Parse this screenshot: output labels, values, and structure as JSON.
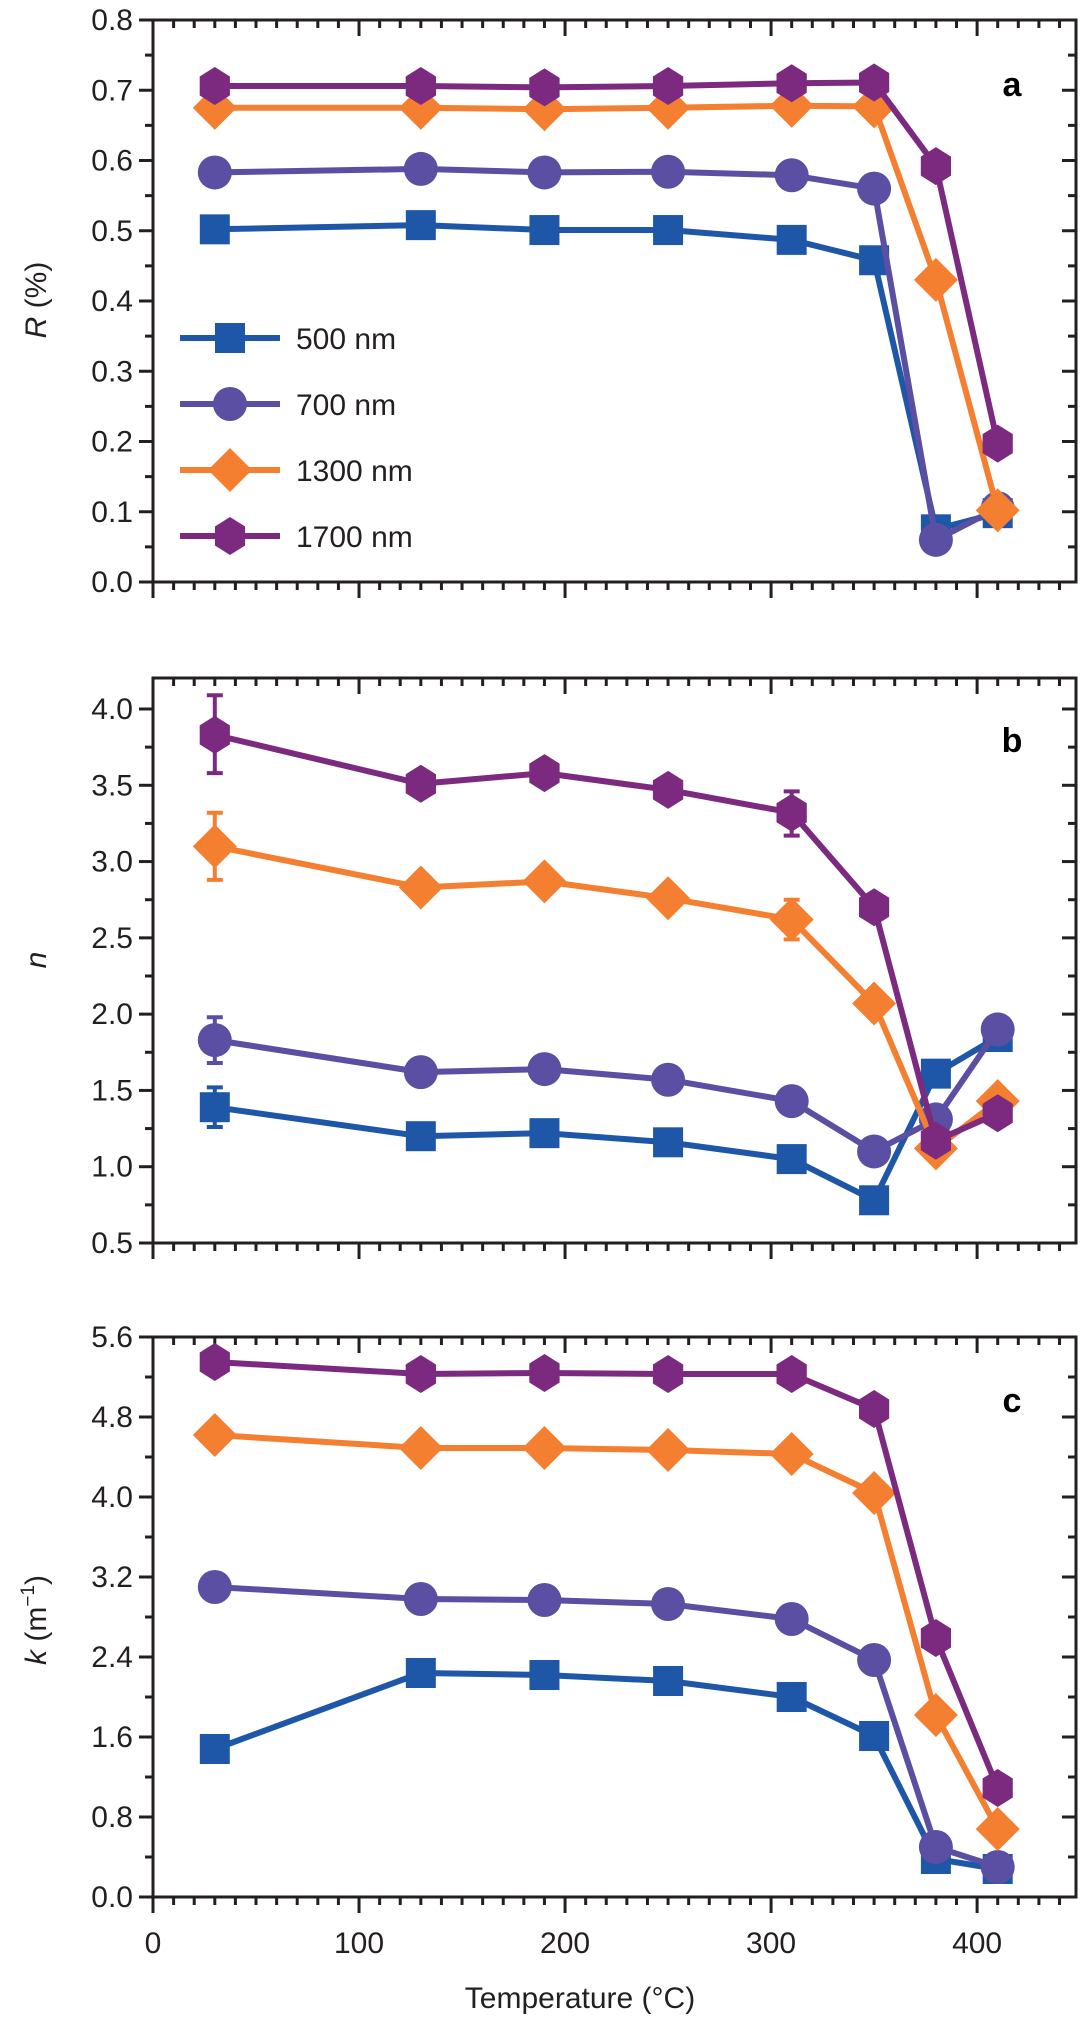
{
  "chart_data": [
    {
      "type": "line",
      "panel_label": "a",
      "xlabel": "",
      "ylabel_italic": "R",
      "ylabel_rest": " (%)",
      "xlim": [
        0,
        448
      ],
      "ylim": [
        0.0,
        0.8
      ],
      "yticks": [
        0.0,
        0.1,
        0.2,
        0.3,
        0.4,
        0.5,
        0.6,
        0.7,
        0.8
      ],
      "ytick_labels": [
        "0.0",
        "0.1",
        "0.2",
        "0.3",
        "0.4",
        "0.5",
        "0.6",
        "0.7",
        "0.8"
      ],
      "x": [
        30,
        130,
        190,
        250,
        310,
        350,
        380,
        410
      ],
      "legend": {
        "placement": "center-left",
        "entries": [
          "500 nm",
          "700 nm",
          "1300 nm",
          "1700 nm"
        ]
      },
      "series": [
        {
          "name": "500 nm",
          "marker": "square",
          "color": "#1f57a8",
          "values": [
            0.502,
            0.508,
            0.501,
            0.501,
            0.487,
            0.458,
            0.075,
            0.098
          ]
        },
        {
          "name": "700 nm",
          "marker": "circle",
          "color": "#5a4fa2",
          "values": [
            0.583,
            0.588,
            0.583,
            0.584,
            0.579,
            0.56,
            0.06,
            0.105
          ]
        },
        {
          "name": "1300 nm",
          "marker": "diamond",
          "color": "#f47f31",
          "values": [
            0.675,
            0.675,
            0.673,
            0.675,
            0.678,
            0.677,
            0.43,
            0.102
          ]
        },
        {
          "name": "1700 nm",
          "marker": "hexagon",
          "color": "#7b2a7f",
          "values": [
            0.706,
            0.706,
            0.704,
            0.706,
            0.71,
            0.711,
            0.592,
            0.197
          ]
        }
      ],
      "error_bars": []
    },
    {
      "type": "line",
      "panel_label": "b",
      "xlabel": "",
      "ylabel_italic": "n",
      "ylabel_rest": "",
      "xlim": [
        0,
        448
      ],
      "ylim": [
        0.5,
        4.2
      ],
      "yticks": [
        0.5,
        1.0,
        1.5,
        2.0,
        2.5,
        3.0,
        3.5,
        4.0
      ],
      "ytick_labels": [
        "0.5",
        "1.0",
        "1.5",
        "2.0",
        "2.5",
        "3.0",
        "3.5",
        "4.0"
      ],
      "x": [
        30,
        130,
        190,
        250,
        310,
        350,
        380,
        410
      ],
      "series": [
        {
          "name": "500 nm",
          "marker": "square",
          "color": "#1f57a8",
          "values": [
            1.39,
            1.2,
            1.22,
            1.16,
            1.05,
            0.78,
            1.61,
            1.85
          ]
        },
        {
          "name": "700 nm",
          "marker": "circle",
          "color": "#5a4fa2",
          "values": [
            1.83,
            1.62,
            1.64,
            1.57,
            1.43,
            1.1,
            1.31,
            1.9
          ]
        },
        {
          "name": "1300 nm",
          "marker": "diamond",
          "color": "#f47f31",
          "values": [
            3.1,
            2.83,
            2.87,
            2.76,
            2.62,
            2.07,
            1.12,
            1.43
          ]
        },
        {
          "name": "1700 nm",
          "marker": "hexagon",
          "color": "#7b2a7f",
          "values": [
            3.83,
            3.51,
            3.58,
            3.47,
            3.32,
            2.7,
            1.17,
            1.35
          ]
        }
      ],
      "error_bars": [
        {
          "series": "500 nm",
          "x": 30,
          "low": 1.26,
          "high": 1.52
        },
        {
          "series": "700 nm",
          "x": 30,
          "low": 1.68,
          "high": 1.98
        },
        {
          "series": "1300 nm",
          "x": 30,
          "low": 2.88,
          "high": 3.32
        },
        {
          "series": "1300 nm",
          "x": 310,
          "low": 2.49,
          "high": 2.75
        },
        {
          "series": "1700 nm",
          "x": 30,
          "low": 3.58,
          "high": 4.09
        },
        {
          "series": "1700 nm",
          "x": 310,
          "low": 3.17,
          "high": 3.46
        }
      ]
    },
    {
      "type": "line",
      "panel_label": "c",
      "xlabel": "Temperature (°C)",
      "ylabel_italic": "k",
      "ylabel_rest": " (m",
      "ylabel_sup": "−1",
      "ylabel_close": ")",
      "xlim": [
        0,
        448
      ],
      "ylim": [
        0.0,
        5.6
      ],
      "yticks": [
        0.0,
        0.8,
        1.6,
        2.4,
        3.2,
        4.0,
        4.8,
        5.6
      ],
      "ytick_labels": [
        "0.0",
        "0.8",
        "1.6",
        "2.4",
        "3.2",
        "4.0",
        "4.8",
        "5.6"
      ],
      "xticks": [
        0,
        100,
        200,
        300,
        400
      ],
      "xtick_labels": [
        "0",
        "100",
        "200",
        "300",
        "400"
      ],
      "x": [
        30,
        130,
        190,
        250,
        310,
        350,
        380,
        410
      ],
      "series": [
        {
          "name": "500 nm",
          "marker": "square",
          "color": "#1f57a8",
          "values": [
            1.48,
            2.24,
            2.22,
            2.16,
            2.0,
            1.61,
            0.38,
            0.28
          ]
        },
        {
          "name": "700 nm",
          "marker": "circle",
          "color": "#5a4fa2",
          "values": [
            3.1,
            2.98,
            2.97,
            2.93,
            2.78,
            2.37,
            0.5,
            0.3
          ]
        },
        {
          "name": "1300 nm",
          "marker": "diamond",
          "color": "#f47f31",
          "values": [
            4.62,
            4.49,
            4.49,
            4.47,
            4.43,
            4.04,
            1.82,
            0.68
          ]
        },
        {
          "name": "1700 nm",
          "marker": "hexagon",
          "color": "#7b2a7f",
          "values": [
            5.35,
            5.23,
            5.24,
            5.23,
            5.23,
            4.88,
            2.59,
            1.09
          ]
        }
      ],
      "error_bars": []
    }
  ]
}
